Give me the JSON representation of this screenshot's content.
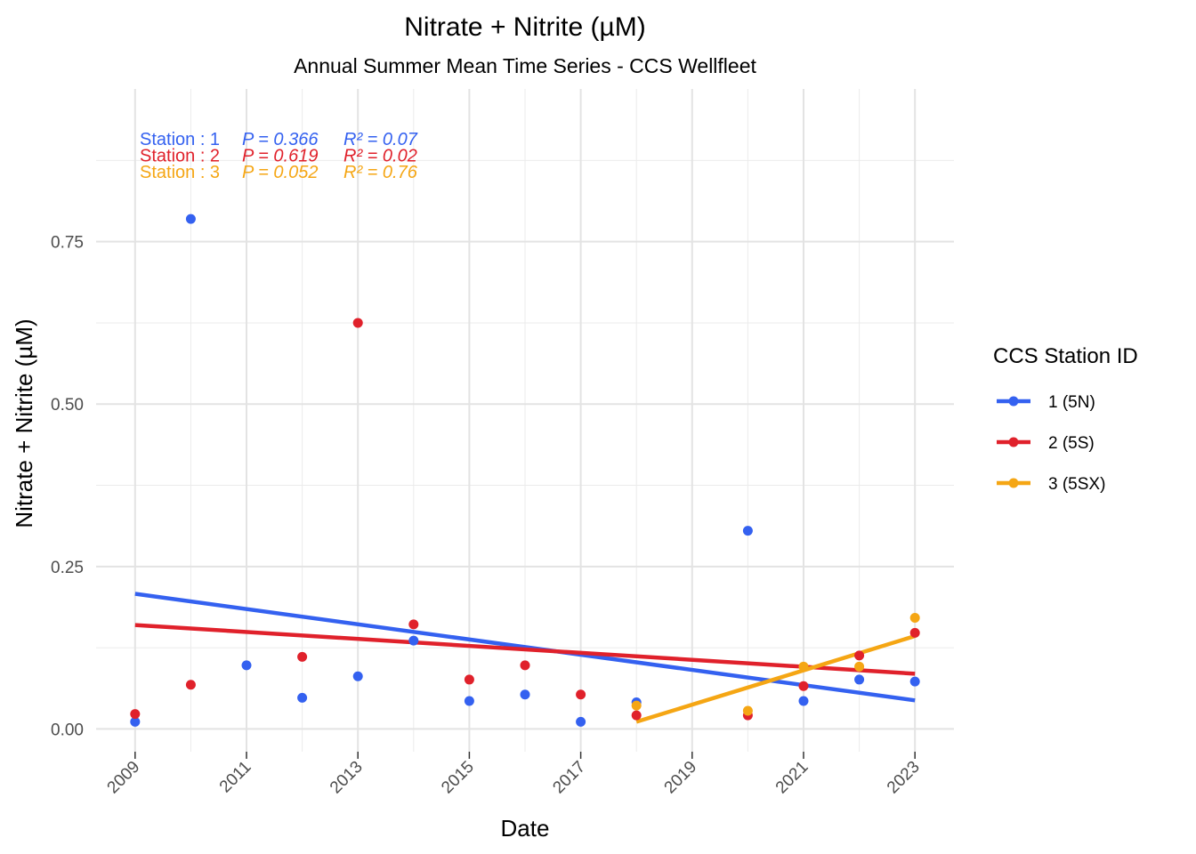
{
  "chart_data": {
    "type": "scatter",
    "title": "Nitrate + Nitrite (µM)",
    "subtitle": "Annual Summer Mean Time Series - CCS Wellfleet",
    "xlabel": "Date",
    "ylabel": "Nitrate + Nitrite (µM)",
    "xlim": [
      2008.3,
      2023.7
    ],
    "ylim": [
      -0.035,
      0.985
    ],
    "x_ticks": [
      2009,
      2011,
      2013,
      2015,
      2017,
      2019,
      2021,
      2023
    ],
    "x_tick_labels": [
      "2009",
      "2011",
      "2013",
      "2015",
      "2017",
      "2019",
      "2021",
      "2023"
    ],
    "y_ticks": [
      0.0,
      0.25,
      0.5,
      0.75
    ],
    "y_tick_labels": [
      "0.00",
      "0.25",
      "0.50",
      "0.75"
    ],
    "grid": true,
    "legend": {
      "title": "CCS Station ID",
      "position": "right",
      "entries": [
        "1 (5N)",
        "2 (5S)",
        "3 (5SX)"
      ]
    },
    "annotations": [
      {
        "station": "Station : 1",
        "p": "P = 0.366",
        "r2": "R² = 0.07",
        "color": "#3461f0"
      },
      {
        "station": "Station : 2",
        "p": "P = 0.619",
        "r2": "R² = 0.02",
        "color": "#e0212b"
      },
      {
        "station": "Station : 3",
        "p": "P = 0.052",
        "r2": "R² = 0.76",
        "color": "#f5a614"
      }
    ],
    "series": [
      {
        "name": "1 (5N)",
        "color": "#3461f0",
        "x": [
          2009,
          2010,
          2011,
          2012,
          2013,
          2014,
          2015,
          2016,
          2017,
          2018,
          2020,
          2021,
          2022,
          2023
        ],
        "y": [
          0.011,
          0.785,
          0.098,
          0.048,
          0.081,
          0.136,
          0.043,
          0.053,
          0.011,
          0.041,
          0.305,
          0.043,
          0.076,
          0.073
        ],
        "trend": [
          [
            2009,
            0.208
          ],
          [
            2023,
            0.044
          ]
        ]
      },
      {
        "name": "2 (5S)",
        "color": "#e0212b",
        "x": [
          2009,
          2010,
          2012,
          2013,
          2014,
          2015,
          2016,
          2017,
          2018,
          2020,
          2021,
          2022,
          2023
        ],
        "y": [
          0.023,
          0.068,
          0.111,
          0.625,
          0.161,
          0.076,
          0.098,
          0.053,
          0.021,
          0.021,
          0.066,
          0.113,
          0.148
        ],
        "trend": [
          [
            2009,
            0.16
          ],
          [
            2023,
            0.085
          ]
        ]
      },
      {
        "name": "3 (5SX)",
        "color": "#f5a614",
        "x": [
          2018,
          2020,
          2021,
          2022,
          2023
        ],
        "y": [
          0.036,
          0.028,
          0.096,
          0.096,
          0.171
        ],
        "trend": [
          [
            2018,
            0.011
          ],
          [
            2023,
            0.143
          ]
        ]
      }
    ]
  }
}
